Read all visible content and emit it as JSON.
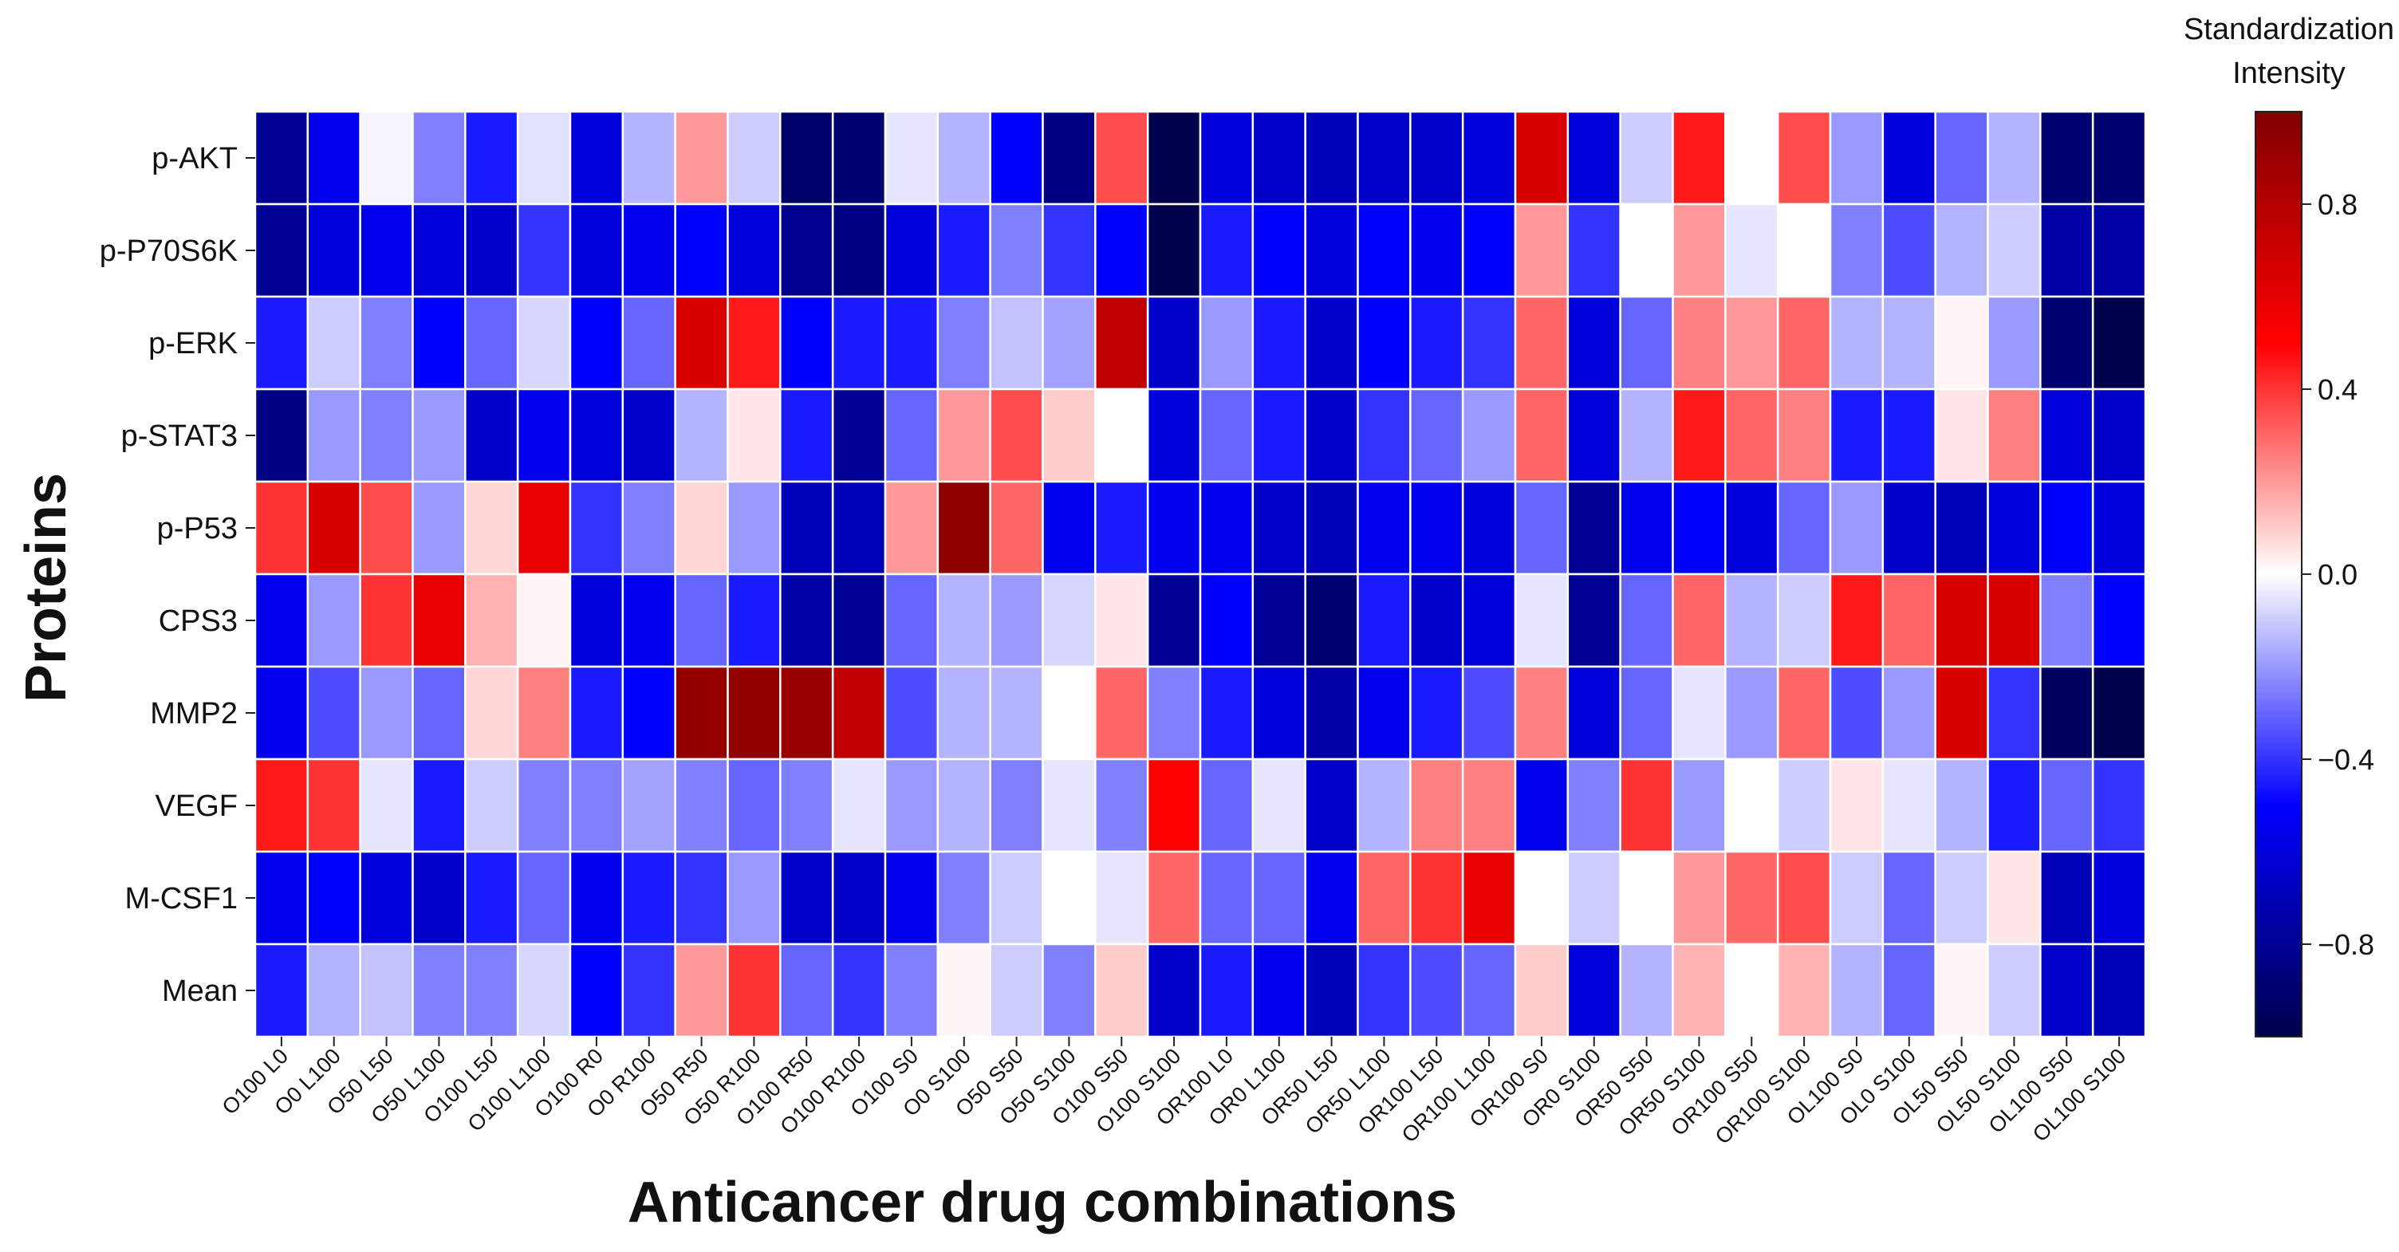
{
  "chart_data": {
    "type": "heatmap",
    "xlabel": "Anticancer drug combinations",
    "ylabel": "Proteins",
    "rows": [
      "p-AKT",
      "p-P70S6K",
      "p-ERK",
      "p-STAT3",
      "p-P53",
      "CPS3",
      "MMP2",
      "VEGF",
      "M-CSF1",
      "Mean"
    ],
    "columns": [
      "O100 L0",
      "O0 L100",
      "O50 L50",
      "O50 L100",
      "O100 L50",
      "O100 L100",
      "O100 R0",
      "O0 R100",
      "O50 R50",
      "O50 R100",
      "O100 R50",
      "O100 R100",
      "O100 S0",
      "O0 S100",
      "O50 S50",
      "O50 S100",
      "O100 S50",
      "O100 S100",
      "OR100 L0",
      "OR0 L100",
      "OR50 L50",
      "OR50 L100",
      "OR100 L50",
      "OR100 L100",
      "OR100 S0",
      "OR0 S100",
      "OR50 S50",
      "OR50 S100",
      "OR100 S50",
      "OR100 S100",
      "OL100 S0",
      "OL0 S100",
      "OL50 S50",
      "OL50 S100",
      "OL100 S50",
      "OL100 S100"
    ],
    "values": [
      [
        -0.8,
        -0.55,
        -0.02,
        -0.25,
        -0.45,
        -0.06,
        -0.6,
        -0.15,
        0.2,
        -0.1,
        -0.92,
        -0.9,
        -0.05,
        -0.15,
        -0.5,
        -0.85,
        0.35,
        -1.0,
        -0.6,
        -0.65,
        -0.7,
        -0.65,
        -0.65,
        -0.6,
        0.65,
        -0.6,
        -0.1,
        0.45,
        0.0,
        0.35,
        -0.2,
        -0.6,
        -0.3,
        -0.15,
        -0.9,
        -0.9
      ],
      [
        -0.8,
        -0.6,
        -0.55,
        -0.6,
        -0.65,
        -0.4,
        -0.6,
        -0.55,
        -0.5,
        -0.6,
        -0.82,
        -0.85,
        -0.6,
        -0.45,
        -0.25,
        -0.4,
        -0.5,
        -1.0,
        -0.45,
        -0.5,
        -0.6,
        -0.5,
        -0.55,
        -0.5,
        0.2,
        -0.4,
        0.0,
        0.2,
        -0.05,
        0.0,
        -0.25,
        -0.35,
        -0.15,
        -0.1,
        -0.75,
        -0.75
      ],
      [
        -0.45,
        -0.1,
        -0.25,
        -0.5,
        -0.3,
        -0.08,
        -0.5,
        -0.3,
        0.65,
        0.45,
        -0.5,
        -0.45,
        -0.45,
        -0.25,
        -0.12,
        -0.18,
        0.75,
        -0.65,
        -0.2,
        -0.45,
        -0.65,
        -0.5,
        -0.45,
        -0.4,
        0.3,
        -0.6,
        -0.3,
        0.25,
        0.2,
        0.3,
        -0.15,
        -0.15,
        0.02,
        -0.2,
        -0.9,
        -1.0
      ],
      [
        -0.85,
        -0.2,
        -0.25,
        -0.2,
        -0.65,
        -0.55,
        -0.6,
        -0.65,
        -0.15,
        0.05,
        -0.45,
        -0.8,
        -0.3,
        0.2,
        0.35,
        0.1,
        0.0,
        -0.6,
        -0.3,
        -0.45,
        -0.65,
        -0.4,
        -0.3,
        -0.2,
        0.3,
        -0.6,
        -0.15,
        0.45,
        0.3,
        0.25,
        -0.45,
        -0.45,
        0.05,
        0.25,
        -0.6,
        -0.65
      ],
      [
        0.4,
        0.65,
        0.35,
        -0.2,
        0.08,
        0.6,
        -0.4,
        -0.25,
        0.08,
        -0.2,
        -0.7,
        -0.7,
        0.2,
        0.95,
        0.3,
        -0.55,
        -0.45,
        -0.55,
        -0.55,
        -0.65,
        -0.7,
        -0.55,
        -0.55,
        -0.6,
        -0.3,
        -0.8,
        -0.55,
        -0.5,
        -0.6,
        -0.3,
        -0.2,
        -0.65,
        -0.7,
        -0.6,
        -0.5,
        -0.6
      ],
      [
        -0.55,
        -0.2,
        0.4,
        0.6,
        0.15,
        0.02,
        -0.6,
        -0.55,
        -0.3,
        -0.45,
        -0.75,
        -0.8,
        -0.3,
        -0.15,
        -0.2,
        -0.08,
        0.05,
        -0.8,
        -0.5,
        -0.8,
        -0.9,
        -0.45,
        -0.65,
        -0.6,
        -0.05,
        -0.8,
        -0.3,
        0.3,
        -0.15,
        -0.1,
        0.45,
        0.3,
        0.65,
        0.65,
        -0.25,
        -0.5
      ],
      [
        -0.55,
        -0.35,
        -0.2,
        -0.3,
        0.08,
        0.25,
        -0.45,
        -0.5,
        0.92,
        0.93,
        0.9,
        0.75,
        -0.35,
        -0.15,
        -0.15,
        0.0,
        0.3,
        -0.25,
        -0.45,
        -0.6,
        -0.75,
        -0.55,
        -0.45,
        -0.35,
        0.25,
        -0.6,
        -0.3,
        -0.05,
        -0.2,
        0.3,
        -0.35,
        -0.2,
        0.65,
        -0.4,
        -0.95,
        -1.0
      ],
      [
        0.45,
        0.4,
        -0.05,
        -0.45,
        -0.1,
        -0.25,
        -0.25,
        -0.18,
        -0.25,
        -0.3,
        -0.25,
        -0.05,
        -0.2,
        -0.15,
        -0.25,
        -0.05,
        -0.25,
        0.5,
        -0.3,
        -0.05,
        -0.65,
        -0.15,
        0.25,
        0.25,
        -0.55,
        -0.25,
        0.4,
        -0.2,
        0.0,
        -0.1,
        0.05,
        -0.05,
        -0.15,
        -0.45,
        -0.3,
        -0.4
      ],
      [
        -0.55,
        -0.5,
        -0.6,
        -0.65,
        -0.45,
        -0.3,
        -0.55,
        -0.45,
        -0.4,
        -0.2,
        -0.65,
        -0.65,
        -0.55,
        -0.25,
        -0.1,
        0.0,
        -0.05,
        0.3,
        -0.3,
        -0.3,
        -0.55,
        0.3,
        0.4,
        0.6,
        0.0,
        -0.1,
        0.0,
        0.2,
        0.3,
        0.35,
        -0.1,
        -0.3,
        -0.1,
        0.05,
        -0.7,
        -0.6
      ],
      [
        -0.45,
        -0.15,
        -0.12,
        -0.25,
        -0.25,
        -0.08,
        -0.5,
        -0.4,
        0.2,
        0.4,
        -0.3,
        -0.4,
        -0.25,
        0.02,
        -0.1,
        -0.25,
        0.1,
        -0.65,
        -0.45,
        -0.55,
        -0.7,
        -0.4,
        -0.35,
        -0.3,
        0.1,
        -0.6,
        -0.15,
        0.15,
        0.0,
        0.15,
        -0.15,
        -0.3,
        0.02,
        -0.1,
        -0.65,
        -0.7
      ]
    ],
    "colormap": "bwr",
    "vmin": -1.0,
    "vmax": 1.0,
    "colorbar": {
      "title_line1": "Standardization",
      "title_line2": "Intensity",
      "ticks": [
        0.8,
        0.4,
        0.0,
        -0.4,
        -0.8
      ],
      "tick_labels": [
        "0.8",
        "0.4",
        "0.0",
        "−0.4",
        "−0.8"
      ]
    },
    "grid": "white cell borders",
    "colors": {
      "low": "#00004c",
      "mid_low": "#0000ff",
      "zero": "#ffffff",
      "mid_high": "#ff0000",
      "high": "#800000"
    }
  }
}
